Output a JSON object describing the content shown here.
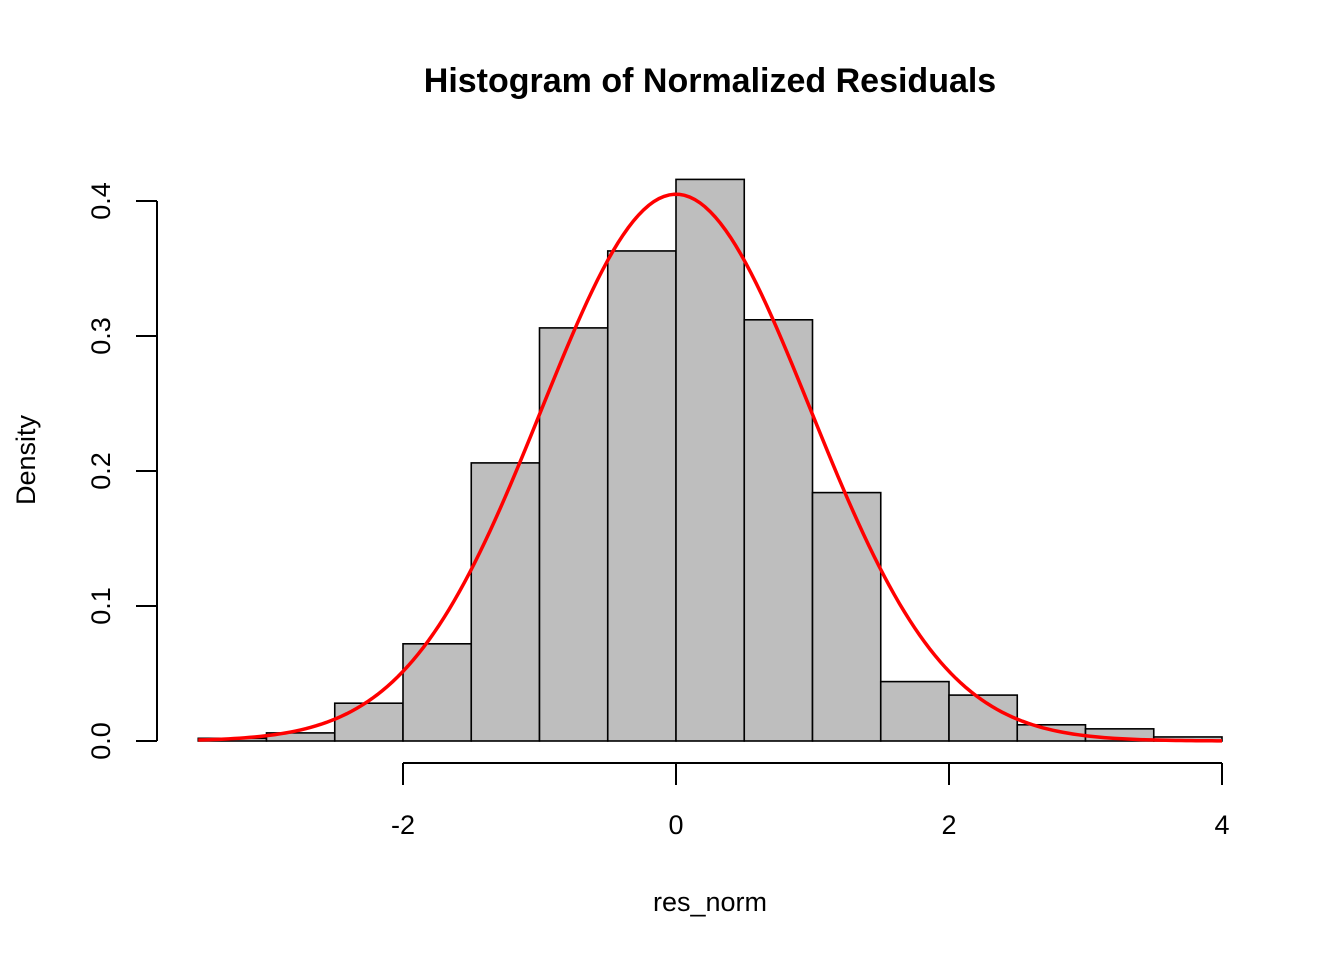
{
  "chart_data": {
    "type": "bar",
    "subtype": "histogram",
    "title": "Histogram of Normalized Residuals",
    "xlabel": "res_norm",
    "ylabel": "Density",
    "xlim": [
      -3.5,
      4
    ],
    "ylim": [
      0,
      0.42
    ],
    "x_ticks": [
      -2,
      0,
      2,
      4
    ],
    "y_ticks": [
      0.0,
      0.1,
      0.2,
      0.3,
      0.4
    ],
    "x_tick_labels": [
      "-2",
      "0",
      "2",
      "4"
    ],
    "y_tick_labels": [
      "0.0",
      "0.1",
      "0.2",
      "0.3",
      "0.4"
    ],
    "bins": [
      {
        "x0": -3.5,
        "x1": -3.0,
        "density": 0.002
      },
      {
        "x0": -3.0,
        "x1": -2.5,
        "density": 0.006
      },
      {
        "x0": -2.5,
        "x1": -2.0,
        "density": 0.028
      },
      {
        "x0": -2.0,
        "x1": -1.5,
        "density": 0.072
      },
      {
        "x0": -1.5,
        "x1": -1.0,
        "density": 0.206
      },
      {
        "x0": -1.0,
        "x1": -0.5,
        "density": 0.306
      },
      {
        "x0": -0.5,
        "x1": 0.0,
        "density": 0.363
      },
      {
        "x0": 0.0,
        "x1": 0.5,
        "density": 0.416
      },
      {
        "x0": 0.5,
        "x1": 1.0,
        "density": 0.312
      },
      {
        "x0": 1.0,
        "x1": 1.5,
        "density": 0.184
      },
      {
        "x0": 1.5,
        "x1": 2.0,
        "density": 0.044
      },
      {
        "x0": 2.0,
        "x1": 2.5,
        "density": 0.034
      },
      {
        "x0": 2.5,
        "x1": 3.0,
        "density": 0.012
      },
      {
        "x0": 3.0,
        "x1": 3.5,
        "density": 0.009
      },
      {
        "x0": 3.5,
        "x1": 4.0,
        "density": 0.003
      }
    ],
    "overlay_curve": {
      "type": "line",
      "description": "normal density",
      "mean": 0,
      "sd": 0.985,
      "x_range": [
        -3.5,
        4
      ]
    },
    "grid": false,
    "colors": {
      "bar_fill": "#bebebe",
      "bar_stroke": "#000000",
      "curve": "#ff0000"
    }
  }
}
